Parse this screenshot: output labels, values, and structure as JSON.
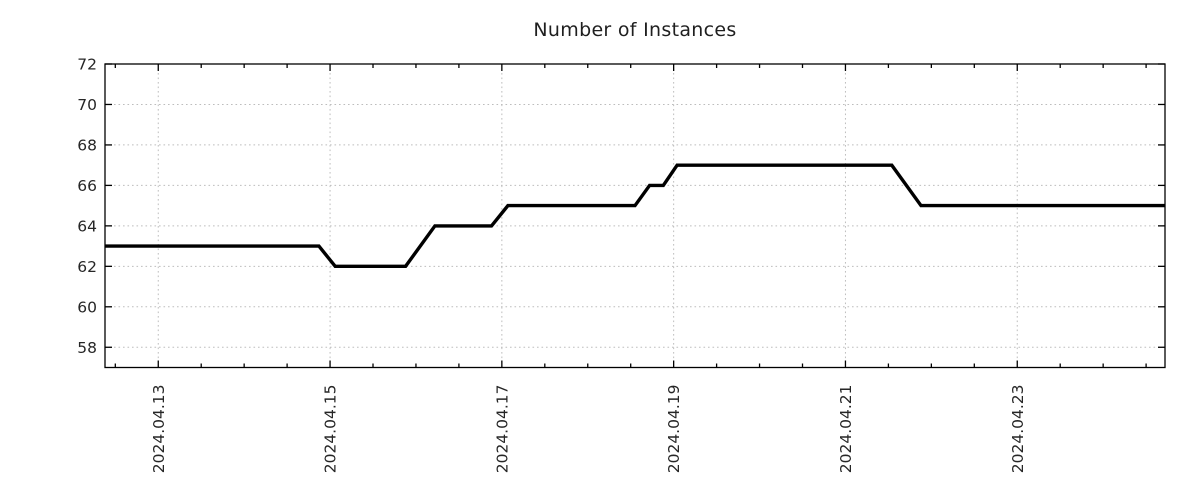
{
  "page": {
    "background": "#ffffff"
  },
  "chart_data": {
    "type": "line",
    "title": "Number of Instances",
    "xlabel": "",
    "ylabel": "",
    "x_unit": "day of April 2024 (fractional)",
    "xlim": [
      12.38,
      24.72
    ],
    "ylim": [
      57,
      72
    ],
    "y_ticks": [
      58,
      60,
      62,
      64,
      66,
      68,
      70,
      72
    ],
    "x_major_ticks": [
      13,
      15,
      17,
      19,
      21,
      23
    ],
    "x_major_labels": [
      "2024.04.13",
      "2024.04.15",
      "2024.04.17",
      "2024.04.19",
      "2024.04.21",
      "2024.04.23"
    ],
    "x_minor_tick_step": 0.5,
    "x_label_rotation_deg": -90,
    "grid": true,
    "legend_position": "none",
    "series": [
      {
        "name": "instances",
        "color": "#000000",
        "line_width": 3.4,
        "points": [
          [
            12.38,
            63
          ],
          [
            14.87,
            63
          ],
          [
            15.06,
            62
          ],
          [
            15.88,
            62
          ],
          [
            16.22,
            64
          ],
          [
            16.88,
            64
          ],
          [
            17.07,
            65
          ],
          [
            18.55,
            65
          ],
          [
            18.72,
            66
          ],
          [
            18.88,
            66
          ],
          [
            19.04,
            67
          ],
          [
            21.54,
            67
          ],
          [
            21.88,
            65
          ],
          [
            24.72,
            65
          ]
        ]
      }
    ],
    "colors": {
      "grid": "#bdbdbd",
      "axis_border": "#000000",
      "text": "#262626",
      "background": "#ffffff",
      "line": "#000000"
    }
  }
}
